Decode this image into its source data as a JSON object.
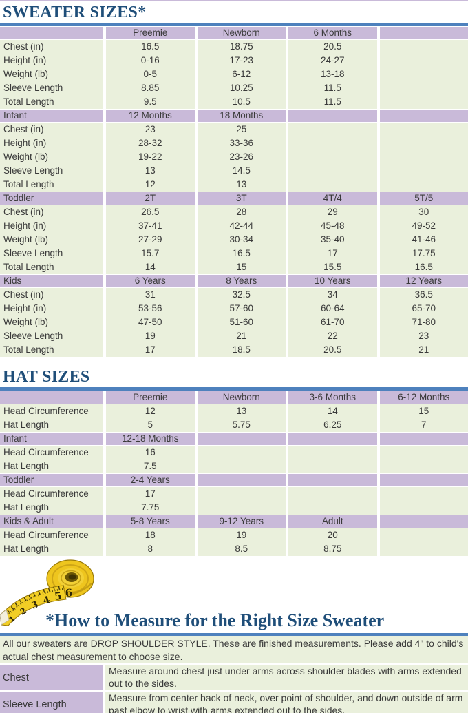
{
  "titles": {
    "sweater": "SWEATER SIZES*",
    "hat": "HAT SIZES",
    "measure": "*How to Measure for the Right Size Sweater"
  },
  "colors": {
    "header_purple": "#c9bad9",
    "row_green": "#eaf0dc",
    "accent_blue_bar": "#4e81bd",
    "title_navy": "#1f4e79",
    "body_text": "#3a3a3a",
    "tape_yellow": "#f2ce25"
  },
  "sweater_table": {
    "sections": [
      {
        "label": "",
        "columns": [
          "Preemie",
          "Newborn",
          "6 Months",
          ""
        ],
        "measurements": [
          {
            "label": "Chest (in)",
            "values": [
              "16.5",
              "18.75",
              "20.5",
              ""
            ]
          },
          {
            "label": "Height (in)",
            "values": [
              "0-16",
              "17-23",
              "24-27",
              ""
            ]
          },
          {
            "label": "Weight (lb)",
            "values": [
              "0-5",
              "6-12",
              "13-18",
              ""
            ]
          },
          {
            "label": "Sleeve Length",
            "values": [
              "8.85",
              "10.25",
              "11.5",
              ""
            ]
          },
          {
            "label": "Total Length",
            "values": [
              "9.5",
              "10.5",
              "11.5",
              ""
            ]
          }
        ]
      },
      {
        "label": "Infant",
        "columns": [
          "12 Months",
          "18 Months",
          "",
          ""
        ],
        "measurements": [
          {
            "label": "Chest (in)",
            "values": [
              "23",
              "25",
              "",
              ""
            ]
          },
          {
            "label": "Height (in)",
            "values": [
              "28-32",
              "33-36",
              "",
              ""
            ]
          },
          {
            "label": "Weight (lb)",
            "values": [
              "19-22",
              "23-26",
              "",
              ""
            ]
          },
          {
            "label": "Sleeve Length",
            "values": [
              "13",
              "14.5",
              "",
              ""
            ]
          },
          {
            "label": "Total Length",
            "values": [
              "12",
              "13",
              "",
              ""
            ]
          }
        ]
      },
      {
        "label": "Toddler",
        "columns": [
          "2T",
          "3T",
          "4T/4",
          "5T/5"
        ],
        "measurements": [
          {
            "label": "Chest (in)",
            "values": [
              "26.5",
              "28",
              "29",
              "30"
            ]
          },
          {
            "label": "Height (in)",
            "values": [
              "37-41",
              "42-44",
              "45-48",
              "49-52"
            ]
          },
          {
            "label": "Weight (lb)",
            "values": [
              "27-29",
              "30-34",
              "35-40",
              "41-46"
            ]
          },
          {
            "label": "Sleeve Length",
            "values": [
              "15.7",
              "16.5",
              "17",
              "17.75"
            ]
          },
          {
            "label": "Total Length",
            "values": [
              "14",
              "15",
              "15.5",
              "16.5"
            ]
          }
        ]
      },
      {
        "label": "Kids",
        "columns": [
          "6 Years",
          "8 Years",
          "10 Years",
          "12 Years"
        ],
        "measurements": [
          {
            "label": "Chest (in)",
            "values": [
              "31",
              "32.5",
              "34",
              "36.5"
            ]
          },
          {
            "label": "Height (in)",
            "values": [
              "53-56",
              "57-60",
              "60-64",
              "65-70"
            ]
          },
          {
            "label": "Weight (lb)",
            "values": [
              "47-50",
              "51-60",
              "61-70",
              "71-80"
            ]
          },
          {
            "label": "Sleeve Length",
            "values": [
              "19",
              "21",
              "22",
              "23"
            ]
          },
          {
            "label": "Total Length",
            "values": [
              "17",
              "18.5",
              "20.5",
              "21"
            ]
          }
        ]
      }
    ]
  },
  "hat_table": {
    "sections": [
      {
        "label": "",
        "columns": [
          "Preemie",
          "Newborn",
          "3-6 Months",
          "6-12 Months"
        ],
        "measurements": [
          {
            "label": "Head Circumference",
            "values": [
              "12",
              "13",
              "14",
              "15"
            ]
          },
          {
            "label": "Hat Length",
            "values": [
              "5",
              "5.75",
              "6.25",
              "7"
            ]
          }
        ]
      },
      {
        "label": "Infant",
        "columns": [
          "12-18 Months",
          "",
          "",
          ""
        ],
        "measurements": [
          {
            "label": "Head Circumference",
            "values": [
              "16",
              "",
              "",
              ""
            ]
          },
          {
            "label": "Hat Length",
            "values": [
              "7.5",
              "",
              "",
              ""
            ]
          }
        ]
      },
      {
        "label": "Toddler",
        "columns": [
          "2-4 Years",
          "",
          "",
          ""
        ],
        "measurements": [
          {
            "label": "Head Circumference",
            "values": [
              "17",
              "",
              "",
              ""
            ]
          },
          {
            "label": "Hat Length",
            "values": [
              "7.75",
              "",
              "",
              ""
            ]
          }
        ]
      },
      {
        "label": "Kids & Adult",
        "columns": [
          "5-8 Years",
          "9-12 Years",
          "Adult",
          ""
        ],
        "measurements": [
          {
            "label": "Head Circumference",
            "values": [
              "18",
              "19",
              "20",
              ""
            ]
          },
          {
            "label": "Hat Length",
            "values": [
              "8",
              "8.5",
              "8.75",
              ""
            ]
          }
        ]
      }
    ]
  },
  "tape_measure": {
    "numbers": [
      "1",
      "2",
      "3",
      "4",
      "5",
      "6"
    ]
  },
  "measure_info": {
    "intro": "All our sweaters are DROP SHOULDER STYLE.  These are finished measurements.  Please add 4\" to child's actual chest measurement to choose size.",
    "rows": [
      {
        "label": "Chest",
        "text": "Measure around chest just under arms across shoulder blades with arms extended out to the sides."
      },
      {
        "label": "Sleeve Length",
        "text": "Measure from center back of neck, over point of shoulder, and down outside of arm past elbow to wrist with arms extended out to the sides."
      }
    ]
  }
}
